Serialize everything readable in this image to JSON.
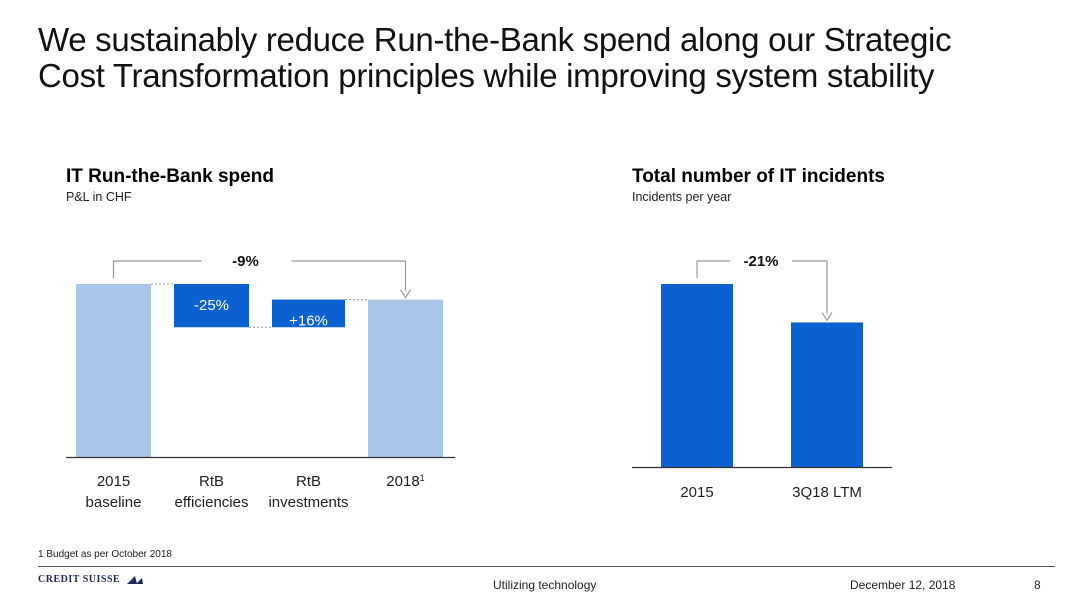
{
  "slide": {
    "title_line1": "We sustainably reduce Run-the-Bank spend along our Strategic",
    "title_line2": "Cost Transformation principles while improving system stability",
    "footnote": "1 Budget as per October 2018",
    "logo_text": "CREDIT SUISSE",
    "footer_center": "Utilizing technology",
    "footer_date": "December 12, 2018",
    "page_number": "8"
  },
  "colors": {
    "light_blue": "#A9C6E8",
    "dark_blue": "#0B61CF",
    "axis": "#333333",
    "connector": "#999999",
    "bracket": "#999999"
  },
  "chart_data": [
    {
      "type": "bar",
      "subtype": "waterfall",
      "title": "IT Run-the-Bank spend",
      "subtitle": "P&L in CHF",
      "categories": [
        {
          "line1": "2015",
          "line2": "baseline"
        },
        {
          "line1": "RtB",
          "line2": "efficiencies"
        },
        {
          "line1": "RtB",
          "line2": "investments"
        },
        {
          "line1": "2018",
          "sup": "1",
          "line2": ""
        }
      ],
      "steps": [
        {
          "kind": "total",
          "start": 0,
          "end": 100,
          "label": ""
        },
        {
          "kind": "delta",
          "start": 100,
          "end": 75,
          "label": "-25%"
        },
        {
          "kind": "delta",
          "start": 75,
          "end": 91,
          "label": "+16%"
        },
        {
          "kind": "total",
          "start": 0,
          "end": 91,
          "label": ""
        }
      ],
      "change_label": "-9%",
      "ylim": [
        0,
        100
      ]
    },
    {
      "type": "bar",
      "title": "Total number of IT incidents",
      "subtitle": "Incidents per year",
      "categories": [
        "2015",
        "3Q18 LTM"
      ],
      "values": [
        100,
        79
      ],
      "change_label": "-21%",
      "ylim": [
        0,
        100
      ]
    }
  ]
}
